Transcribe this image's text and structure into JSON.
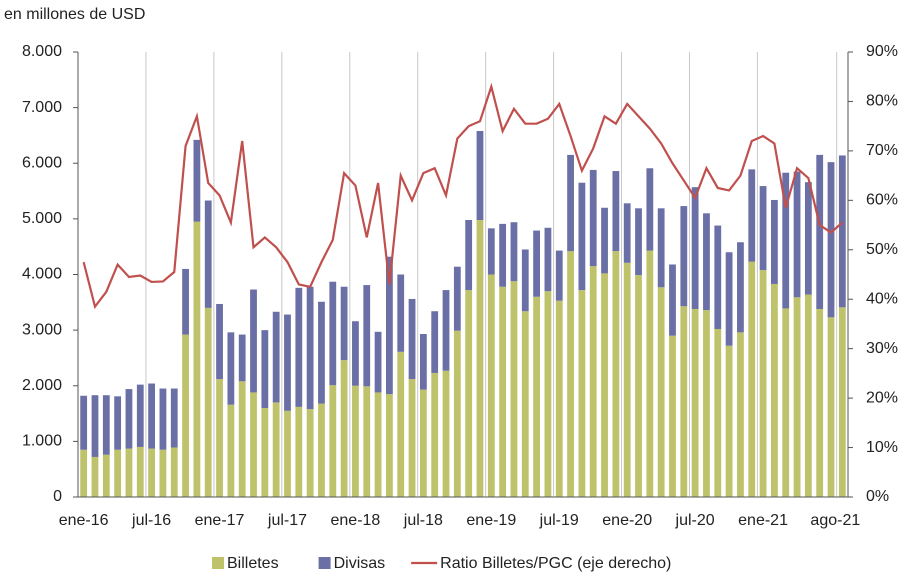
{
  "chart_data": {
    "type": "bar-line",
    "subtitle": "en millones de USD",
    "categories": [
      "ene-16",
      null,
      null,
      null,
      null,
      null,
      "jul-16",
      null,
      null,
      null,
      null,
      null,
      "ene-17",
      null,
      null,
      null,
      null,
      null,
      "jul-17",
      null,
      null,
      null,
      null,
      null,
      "ene-18",
      null,
      null,
      null,
      null,
      null,
      "jul-18",
      null,
      null,
      null,
      null,
      null,
      "ene-19",
      null,
      null,
      null,
      null,
      null,
      "jul-19",
      null,
      null,
      null,
      null,
      null,
      "ene-20",
      null,
      null,
      null,
      null,
      null,
      "jul-20",
      null,
      null,
      null,
      null,
      null,
      "ene-21",
      null,
      null,
      null,
      null,
      null,
      null,
      "ago-21"
    ],
    "series": [
      {
        "name": "Billetes",
        "type": "bar",
        "color": "#bec26b",
        "values": [
          850,
          720,
          760,
          850,
          870,
          900,
          870,
          850,
          890,
          2920,
          4950,
          3400,
          2120,
          1660,
          2080,
          1880,
          1600,
          1700,
          1550,
          1620,
          1580,
          1680,
          2010,
          2460,
          2000,
          1990,
          1880,
          1850,
          2610,
          2120,
          1930,
          2230,
          2270,
          2990,
          3720,
          4980,
          4000,
          3780,
          3880,
          3340,
          3600,
          3700,
          3530,
          4420,
          3720,
          4150,
          4020,
          4420,
          4210,
          3990,
          4430,
          3770,
          2900,
          3430,
          3380,
          3360,
          3020,
          2720,
          2960,
          4230,
          4080,
          3830,
          3390,
          3590,
          3640,
          3380,
          3230,
          3410
        ]
      },
      {
        "name": "Divisas",
        "type": "bar",
        "color": "#6a70a5",
        "values": [
          970,
          1110,
          1070,
          960,
          1070,
          1120,
          1170,
          1100,
          1060,
          1180,
          1470,
          1930,
          1350,
          1300,
          840,
          1850,
          1400,
          1630,
          1730,
          2140,
          2200,
          1830,
          1860,
          1320,
          1160,
          1820,
          1090,
          2470,
          1390,
          1440,
          1000,
          1110,
          1450,
          1150,
          1260,
          1600,
          830,
          1130,
          1060,
          1110,
          1190,
          1140,
          900,
          1730,
          1930,
          1730,
          1180,
          1440,
          1070,
          1200,
          1480,
          1420,
          1280,
          1800,
          2190,
          1740,
          1860,
          1680,
          1620,
          1660,
          1510,
          1510,
          2440,
          2260,
          2020,
          2770,
          2790,
          2730
        ]
      },
      {
        "name": "Ratio Billetes/PGC (eje derecho)",
        "type": "line",
        "axis": "y2",
        "color": "#c0504d",
        "values": [
          47.5,
          38.5,
          41.5,
          47,
          44.5,
          44.8,
          43.5,
          43.6,
          45.5,
          71,
          77,
          63.5,
          61,
          55.5,
          72,
          50.5,
          52.5,
          50.5,
          47.5,
          43,
          42.5,
          47.5,
          52,
          65.5,
          63,
          52.5,
          63.5,
          43,
          65,
          60,
          65.5,
          66.5,
          61,
          72.5,
          75,
          76,
          83,
          74,
          78.5,
          75.5,
          75.5,
          76.5,
          79.5,
          73,
          66,
          70.5,
          77,
          75.5,
          79.5,
          77,
          74.5,
          71.5,
          67.5,
          64,
          60.5,
          66.5,
          62.5,
          62,
          65,
          72,
          73,
          71.5,
          58.5,
          66.5,
          64.5,
          55,
          53.5,
          55.5
        ]
      }
    ],
    "ylim": [
      0,
      8000
    ],
    "yticks": [
      0,
      {
        "value": 1000,
        "label": "1.000"
      },
      {
        "value": 2000,
        "label": "2.000"
      },
      {
        "value": 3000,
        "label": "3.000"
      },
      {
        "value": 4000,
        "label": "4.000"
      },
      {
        "value": 5000,
        "label": "5.000"
      },
      {
        "value": 6000,
        "label": "6.000"
      },
      {
        "value": 7000,
        "label": "7.000"
      },
      {
        "value": 8000,
        "label": "8.000"
      }
    ],
    "y2lim": [
      0,
      90
    ],
    "y2ticks": [
      {
        "value": 0,
        "label": "0%"
      },
      {
        "value": 10,
        "label": "10%"
      },
      {
        "value": 20,
        "label": "20%"
      },
      {
        "value": 30,
        "label": "30%"
      },
      {
        "value": 40,
        "label": "40%"
      },
      {
        "value": 50,
        "label": "50%"
      },
      {
        "value": 60,
        "label": "60%"
      },
      {
        "value": 70,
        "label": "70%"
      },
      {
        "value": 80,
        "label": "80%"
      },
      {
        "value": 90,
        "label": "90%"
      }
    ],
    "legend": "bottom"
  }
}
